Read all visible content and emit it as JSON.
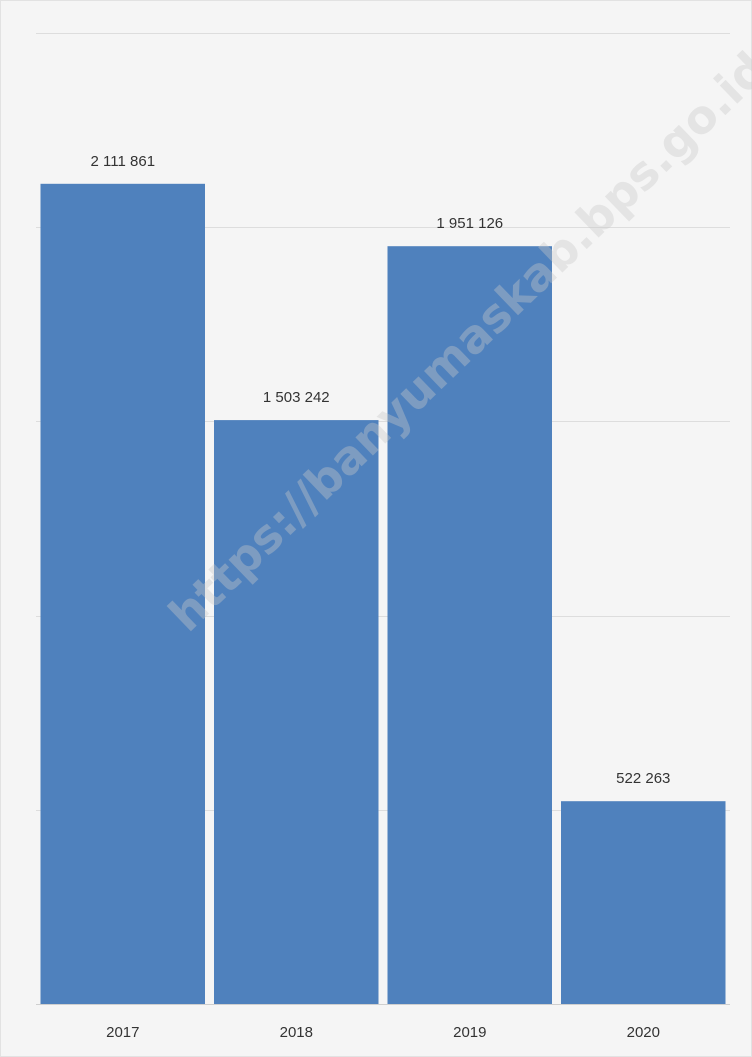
{
  "chart_data": {
    "type": "bar",
    "categories": [
      "2017",
      "2018",
      "2019",
      "2020"
    ],
    "values": [
      2111861,
      1503242,
      1951126,
      522263
    ],
    "value_labels": [
      "2 111 861",
      "1 503 242",
      "1 951 126",
      "522 263"
    ],
    "title": "",
    "xlabel": "",
    "ylabel": "",
    "ylim": [
      0,
      2500000
    ],
    "grid": true,
    "legend": "none",
    "bar_color": "#4f81bd"
  },
  "watermark": "https://banyumaskab.bps.go.id"
}
